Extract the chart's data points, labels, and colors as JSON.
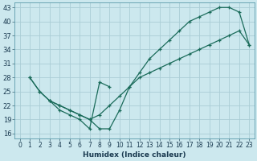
{
  "xlabel": "Humidex (Indice chaleur)",
  "ylabel": "",
  "bg_color": "#cce8ee",
  "grid_color": "#aacdd6",
  "line_color": "#1a6b5a",
  "xlim": [
    -0.5,
    23.5
  ],
  "ylim": [
    15,
    44
  ],
  "xticks": [
    0,
    1,
    2,
    3,
    4,
    5,
    6,
    7,
    8,
    9,
    10,
    11,
    12,
    13,
    14,
    15,
    16,
    17,
    18,
    19,
    20,
    21,
    22,
    23
  ],
  "yticks": [
    16,
    19,
    22,
    25,
    28,
    31,
    34,
    37,
    40,
    43
  ],
  "curve1_x": [
    1,
    2,
    3,
    4,
    5,
    6,
    7,
    8,
    9,
    10,
    11,
    12,
    13,
    14,
    15,
    16,
    17,
    18,
    19,
    20,
    21,
    22,
    23
  ],
  "curve1_y": [
    28,
    25,
    23,
    22,
    21,
    20,
    19,
    17,
    17,
    21,
    26,
    29,
    32,
    34,
    36,
    38,
    40,
    41,
    42,
    43,
    43,
    42,
    35
  ],
  "curve2_x": [
    1,
    2,
    3,
    4,
    5,
    6,
    7,
    8,
    9,
    10,
    11,
    12,
    13,
    14,
    15,
    16,
    17,
    18,
    19,
    20,
    21,
    22,
    23
  ],
  "curve2_y": [
    28,
    25,
    23,
    22,
    21,
    20,
    19,
    20,
    22,
    24,
    26,
    28,
    29,
    30,
    31,
    32,
    33,
    34,
    35,
    36,
    37,
    38,
    35
  ],
  "curve3_x": [
    3,
    4,
    5,
    6,
    7,
    8,
    9
  ],
  "curve3_y": [
    23,
    21,
    20,
    19,
    17,
    27,
    26
  ]
}
